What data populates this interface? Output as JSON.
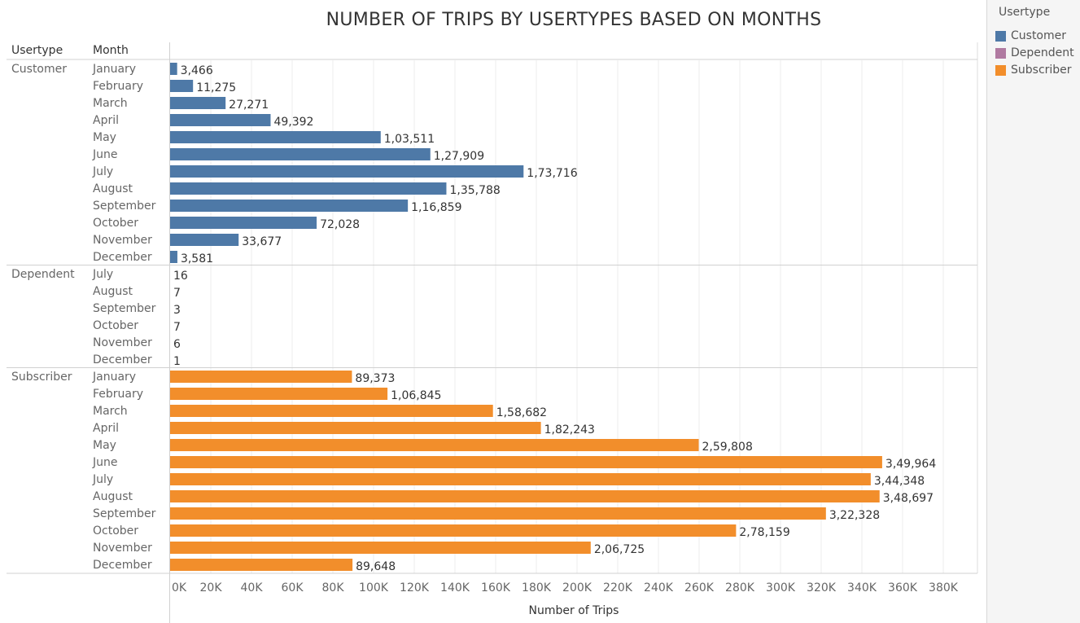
{
  "title": "NUMBER OF TRIPS BY USERTYPES BASED ON MONTHS",
  "headers": {
    "usertype": "Usertype",
    "month": "Month"
  },
  "legend": {
    "title": "Usertype",
    "items": [
      {
        "label": "Customer",
        "color": "#4e79a7"
      },
      {
        "label": "Dependent",
        "color": "#b07aa1"
      },
      {
        "label": "Subscriber",
        "color": "#f28e2b"
      }
    ]
  },
  "chart_data": {
    "type": "bar",
    "orientation": "horizontal",
    "title": "NUMBER OF TRIPS BY USERTYPES BASED ON MONTHS",
    "xlabel": "Number of Trips",
    "xlim": [
      0,
      390000
    ],
    "x_ticks": [
      "0K",
      "20K",
      "40K",
      "60K",
      "80K",
      "100K",
      "120K",
      "140K",
      "160K",
      "180K",
      "200K",
      "220K",
      "240K",
      "260K",
      "280K",
      "300K",
      "320K",
      "340K",
      "360K",
      "380K"
    ],
    "grid": true,
    "legend_position": "right",
    "groups": [
      {
        "name": "Customer",
        "color": "#4e79a7",
        "rows": [
          {
            "month": "January",
            "value": 3466,
            "label": "3,466"
          },
          {
            "month": "February",
            "value": 11275,
            "label": "11,275"
          },
          {
            "month": "March",
            "value": 27271,
            "label": "27,271"
          },
          {
            "month": "April",
            "value": 49392,
            "label": "49,392"
          },
          {
            "month": "May",
            "value": 103511,
            "label": "1,03,511"
          },
          {
            "month": "June",
            "value": 127909,
            "label": "1,27,909"
          },
          {
            "month": "July",
            "value": 173716,
            "label": "1,73,716"
          },
          {
            "month": "August",
            "value": 135788,
            "label": "1,35,788"
          },
          {
            "month": "September",
            "value": 116859,
            "label": "1,16,859"
          },
          {
            "month": "October",
            "value": 72028,
            "label": "72,028"
          },
          {
            "month": "November",
            "value": 33677,
            "label": "33,677"
          },
          {
            "month": "December",
            "value": 3581,
            "label": "3,581"
          }
        ]
      },
      {
        "name": "Dependent",
        "color": "#b07aa1",
        "rows": [
          {
            "month": "July",
            "value": 16,
            "label": "16"
          },
          {
            "month": "August",
            "value": 7,
            "label": "7"
          },
          {
            "month": "September",
            "value": 3,
            "label": "3"
          },
          {
            "month": "October",
            "value": 7,
            "label": "7"
          },
          {
            "month": "November",
            "value": 6,
            "label": "6"
          },
          {
            "month": "December",
            "value": 1,
            "label": "1"
          }
        ]
      },
      {
        "name": "Subscriber",
        "color": "#f28e2b",
        "rows": [
          {
            "month": "January",
            "value": 89373,
            "label": "89,373"
          },
          {
            "month": "February",
            "value": 106845,
            "label": "1,06,845"
          },
          {
            "month": "March",
            "value": 158682,
            "label": "1,58,682"
          },
          {
            "month": "April",
            "value": 182243,
            "label": "1,82,243"
          },
          {
            "month": "May",
            "value": 259808,
            "label": "2,59,808"
          },
          {
            "month": "June",
            "value": 349964,
            "label": "3,49,964"
          },
          {
            "month": "July",
            "value": 344348,
            "label": "3,44,348"
          },
          {
            "month": "August",
            "value": 348697,
            "label": "3,48,697"
          },
          {
            "month": "September",
            "value": 322328,
            "label": "3,22,328"
          },
          {
            "month": "October",
            "value": 278159,
            "label": "2,78,159"
          },
          {
            "month": "November",
            "value": 206725,
            "label": "2,06,725"
          },
          {
            "month": "December",
            "value": 89648,
            "label": "89,648"
          }
        ]
      }
    ]
  }
}
